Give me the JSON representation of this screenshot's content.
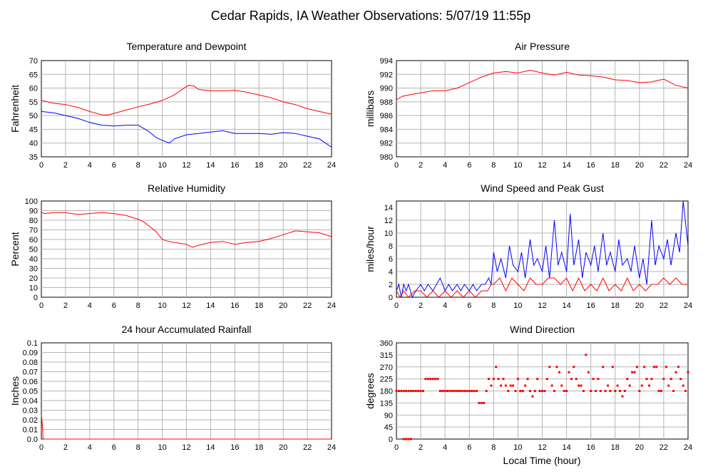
{
  "page_title": "Cedar Rapids, IA Weather Observations: 5/07/19 11:55p",
  "xlabel_global": "Local Time (hour)",
  "colors": {
    "red": "#ff0000",
    "blue": "#0000ff",
    "grid": "#b4b4b4"
  },
  "chart_data": [
    {
      "id": "temp",
      "type": "line",
      "title": "Temperature and Dewpoint",
      "ylabel": "Fahrenheit",
      "xlim": [
        0,
        24
      ],
      "ylim": [
        35,
        70
      ],
      "xticks": [
        0,
        2,
        4,
        6,
        8,
        10,
        12,
        14,
        16,
        18,
        20,
        22,
        24
      ],
      "yticks": [
        35,
        40,
        45,
        50,
        55,
        60,
        65,
        70
      ],
      "grid": true,
      "series": [
        {
          "color": "#ff0000",
          "x": [
            0,
            1,
            2,
            3,
            4,
            5,
            5.5,
            6,
            7,
            8,
            9,
            10,
            11,
            11.8,
            12.2,
            12.6,
            13,
            14,
            15,
            16,
            17,
            18,
            19,
            20,
            21,
            22,
            23,
            24
          ],
          "y": [
            55.5,
            54.5,
            54,
            53,
            51.5,
            50.3,
            50.2,
            50.8,
            52,
            53.2,
            54.2,
            55.5,
            57.5,
            60,
            61,
            60.8,
            59.5,
            59,
            59,
            59.2,
            58.5,
            57.5,
            56.5,
            55,
            54,
            52.5,
            51.5,
            50.5
          ]
        },
        {
          "color": "#0000ff",
          "x": [
            0,
            1,
            2,
            3,
            4,
            5,
            6,
            7,
            8,
            8.8,
            9.5,
            10,
            10.6,
            11,
            12,
            13,
            14,
            15,
            16,
            17,
            18,
            19,
            20,
            21,
            22,
            23,
            24
          ],
          "y": [
            51.5,
            51,
            50,
            49,
            47.5,
            46.5,
            46.2,
            46.5,
            46.5,
            44.5,
            42,
            41,
            40,
            41.5,
            43,
            43.5,
            44,
            44.5,
            43.5,
            43.5,
            43.5,
            43.2,
            43.8,
            43.5,
            42.5,
            41.5,
            38.5
          ]
        }
      ]
    },
    {
      "id": "pressure",
      "type": "line",
      "title": "Air Pressure",
      "ylabel": "millibars",
      "xlim": [
        0,
        24
      ],
      "ylim": [
        980,
        994
      ],
      "xticks": [
        0,
        2,
        4,
        6,
        8,
        10,
        12,
        14,
        16,
        18,
        20,
        22,
        24
      ],
      "yticks": [
        980,
        982,
        984,
        986,
        988,
        990,
        992,
        994
      ],
      "grid": true,
      "series": [
        {
          "color": "#ff0000",
          "x": [
            0,
            0.5,
            1,
            2,
            3,
            4,
            5,
            6,
            7,
            8,
            9,
            10,
            11,
            12,
            13,
            14,
            15,
            16,
            17,
            18,
            19,
            20,
            21,
            22,
            23,
            24
          ],
          "y": [
            988.3,
            988.8,
            989,
            989.3,
            989.6,
            989.6,
            990,
            990.8,
            991.6,
            992.2,
            992.4,
            992.2,
            992.6,
            992.2,
            991.9,
            992.3,
            991.9,
            991.8,
            991.6,
            991.2,
            991.1,
            990.8,
            990.9,
            991.3,
            990.4,
            990
          ]
        }
      ]
    },
    {
      "id": "humidity",
      "type": "line",
      "title": "Relative Humidity",
      "ylabel": "Percent",
      "xlim": [
        0,
        24
      ],
      "ylim": [
        0,
        100
      ],
      "xticks": [
        0,
        2,
        4,
        6,
        8,
        10,
        12,
        14,
        16,
        18,
        20,
        22,
        24
      ],
      "yticks": [
        0,
        10,
        20,
        30,
        40,
        50,
        60,
        70,
        80,
        90,
        100
      ],
      "grid": true,
      "series": [
        {
          "color": "#ff0000",
          "x": [
            0,
            0.3,
            1,
            2,
            3,
            4,
            5,
            6,
            7,
            8,
            8.5,
            9,
            9.5,
            10,
            10.5,
            11,
            12,
            12.5,
            13,
            14,
            15,
            16,
            17,
            18,
            19,
            20,
            21,
            22,
            23,
            24
          ],
          "y": [
            88,
            87,
            88,
            88,
            86,
            87,
            88,
            87,
            85,
            81,
            78,
            73,
            68,
            60,
            58,
            57,
            55,
            52,
            54,
            57,
            58,
            55,
            57,
            58,
            61,
            65,
            69,
            68,
            67,
            63
          ]
        }
      ]
    },
    {
      "id": "wind",
      "type": "line",
      "title": "Wind Speed and Peak Gust",
      "ylabel": "miles/hour",
      "xlim": [
        0,
        24
      ],
      "ylim": [
        0,
        15
      ],
      "xticks": [
        0,
        2,
        4,
        6,
        8,
        10,
        12,
        14,
        16,
        18,
        20,
        22,
        24
      ],
      "yticks": [
        0,
        2,
        4,
        6,
        8,
        10,
        12,
        14
      ],
      "grid": true,
      "series": [
        {
          "color": "#0000ff",
          "x": [
            0,
            0.2,
            0.4,
            0.6,
            0.8,
            1,
            1.3,
            1.6,
            2,
            2.3,
            2.6,
            3,
            3.3,
            3.6,
            4,
            4.3,
            4.6,
            5,
            5.3,
            5.6,
            6,
            6.3,
            6.6,
            7,
            7.3,
            7.6,
            7.8,
            8,
            8.3,
            8.6,
            9,
            9.3,
            9.6,
            10,
            10.3,
            10.6,
            11,
            11.3,
            11.6,
            12,
            12.3,
            12.6,
            13,
            13.3,
            13.6,
            14,
            14.3,
            14.6,
            15,
            15.3,
            15.6,
            16,
            16.3,
            16.6,
            17,
            17.3,
            17.6,
            18,
            18.3,
            18.6,
            19,
            19.3,
            19.6,
            20,
            20.3,
            20.6,
            21,
            21.3,
            21.6,
            22,
            22.3,
            22.6,
            23,
            23.3,
            23.6,
            24
          ],
          "y": [
            1,
            2,
            0,
            2,
            1,
            2,
            0,
            1,
            2,
            1,
            2,
            1,
            2,
            3,
            1,
            2,
            1,
            2,
            1,
            2,
            1,
            2,
            1,
            2,
            2,
            3,
            2,
            7,
            4,
            6,
            3,
            8,
            5,
            4,
            7,
            3,
            9,
            5,
            6,
            4,
            8,
            3,
            12,
            5,
            7,
            4,
            13,
            5,
            9,
            3,
            7,
            5,
            8,
            4,
            10,
            5,
            7,
            4,
            9,
            5,
            6,
            4,
            8,
            3,
            6,
            2,
            12,
            5,
            8,
            6,
            9,
            5,
            10,
            7,
            15,
            8
          ]
        },
        {
          "color": "#ff0000",
          "x": [
            0,
            0.3,
            0.6,
            1,
            1.5,
            2,
            2.5,
            3,
            3.5,
            4,
            4.5,
            5,
            5.5,
            6,
            6.5,
            7,
            7.5,
            7.8,
            8,
            8.5,
            9,
            9.5,
            10,
            10.5,
            11,
            11.5,
            12,
            12.5,
            13,
            13.5,
            14,
            14.5,
            15,
            15.5,
            16,
            16.5,
            17,
            17.5,
            18,
            18.5,
            19,
            19.5,
            20,
            20.5,
            21,
            21.5,
            22,
            22.5,
            23,
            23.5,
            24
          ],
          "y": [
            1,
            0,
            1,
            0,
            1,
            1,
            0,
            1,
            0,
            1,
            0,
            1,
            0,
            1,
            0,
            1,
            1,
            2,
            2,
            3,
            1,
            3,
            2,
            1,
            3,
            2,
            2,
            3,
            3,
            2,
            3,
            1,
            3,
            1,
            2,
            1,
            3,
            1,
            2,
            1,
            3,
            1,
            2,
            1,
            2,
            2,
            3,
            2,
            3,
            2,
            2
          ]
        }
      ]
    },
    {
      "id": "rain",
      "type": "line",
      "title": "24 hour Accumulated Rainfall",
      "ylabel": "Inches",
      "xlim": [
        0,
        24
      ],
      "ylim": [
        0,
        0.1
      ],
      "xticks": [
        0,
        2,
        4,
        6,
        8,
        10,
        12,
        14,
        16,
        18,
        20,
        22,
        24
      ],
      "yticks": [
        0,
        0.01,
        0.02,
        0.03,
        0.04,
        0.05,
        0.06,
        0.07,
        0.08,
        0.09,
        0.1
      ],
      "ytick_labels": [
        "0.0",
        "0.01",
        "0.02",
        "0.03",
        "0.04",
        "0.05",
        "0.06",
        "0.07",
        "0.08",
        "0.09",
        "0.1"
      ],
      "grid": true,
      "series": [
        {
          "color": "#ff0000",
          "x": [
            0,
            0.08,
            0.15,
            24
          ],
          "y": [
            0.025,
            0.015,
            0,
            0
          ]
        }
      ]
    },
    {
      "id": "direction",
      "type": "scatter",
      "title": "Wind Direction",
      "ylabel": "degrees",
      "xlim": [
        0,
        24
      ],
      "ylim": [
        0,
        360
      ],
      "xticks": [
        0,
        2,
        4,
        6,
        8,
        10,
        12,
        14,
        16,
        18,
        20,
        22,
        24
      ],
      "yticks": [
        0,
        45,
        90,
        135,
        180,
        225,
        270,
        315,
        360
      ],
      "grid": true,
      "series": [
        {
          "color": "#ff0000",
          "x": [
            0,
            0.2,
            0.4,
            0.6,
            0.8,
            1,
            1.2,
            1.4,
            1.6,
            1.8,
            2,
            2.2,
            2.4,
            2.6,
            2.8,
            3,
            3.2,
            3.4,
            3.6,
            3.8,
            4,
            4.2,
            4.4,
            4.6,
            4.8,
            5,
            5.2,
            5.4,
            5.6,
            5.8,
            6,
            6.2,
            6.4,
            6.6,
            6.8,
            7,
            7.2,
            7.4,
            7.6,
            7.8,
            8,
            8.2,
            8.4,
            8.6,
            8.8,
            9,
            9.2,
            9.4,
            9.6,
            9.8,
            10,
            10.2,
            10.4,
            10.6,
            10.8,
            11,
            11.2,
            11.4,
            11.6,
            11.8,
            12,
            12.2,
            12.4,
            12.6,
            12.8,
            13,
            13.2,
            13.4,
            13.6,
            13.8,
            14,
            14.2,
            14.4,
            14.6,
            14.8,
            15,
            15.2,
            15.4,
            15.6,
            15.8,
            16,
            16.2,
            16.4,
            16.6,
            16.8,
            17,
            17.2,
            17.4,
            17.6,
            17.8,
            18,
            18.2,
            18.4,
            18.6,
            18.8,
            19,
            19.2,
            19.4,
            19.6,
            19.8,
            20,
            20.2,
            20.4,
            20.6,
            20.8,
            21,
            21.2,
            21.4,
            21.6,
            21.8,
            22,
            22.2,
            22.4,
            22.6,
            22.8,
            23,
            23.2,
            23.4,
            23.6,
            23.8,
            24,
            0.6,
            0.8,
            1,
            1.2
          ],
          "y": [
            180,
            180,
            180,
            180,
            180,
            180,
            180,
            180,
            180,
            180,
            180,
            180,
            225,
            225,
            225,
            225,
            225,
            225,
            180,
            180,
            180,
            180,
            180,
            180,
            180,
            180,
            180,
            180,
            180,
            180,
            180,
            180,
            180,
            180,
            135,
            135,
            135,
            180,
            225,
            200,
            225,
            270,
            225,
            200,
            225,
            200,
            180,
            200,
            200,
            180,
            225,
            180,
            180,
            200,
            225,
            180,
            160,
            180,
            225,
            180,
            180,
            180,
            225,
            270,
            200,
            180,
            270,
            250,
            200,
            180,
            180,
            250,
            225,
            270,
            225,
            200,
            200,
            180,
            315,
            250,
            180,
            225,
            180,
            225,
            180,
            270,
            180,
            200,
            180,
            270,
            180,
            200,
            180,
            160,
            180,
            225,
            200,
            250,
            250,
            270,
            180,
            200,
            270,
            225,
            200,
            225,
            270,
            270,
            180,
            180,
            225,
            270,
            200,
            225,
            180,
            250,
            270,
            225,
            200,
            180,
            250,
            0,
            0,
            0,
            0
          ]
        }
      ]
    }
  ]
}
